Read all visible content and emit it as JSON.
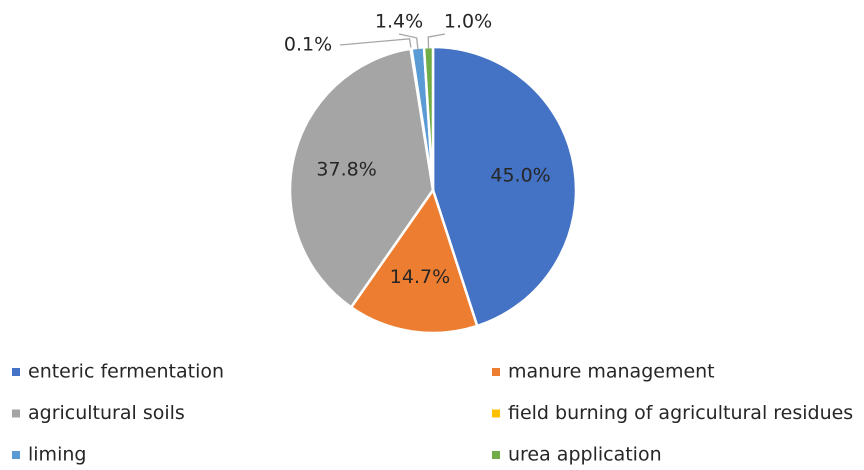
{
  "chart_data": {
    "type": "pie",
    "categories": [
      "enteric fermentation",
      "manure management",
      "agricultural soils",
      "field burning of agricultural residues",
      "liming",
      "urea application"
    ],
    "values": [
      45.0,
      14.7,
      37.8,
      0.1,
      1.4,
      1.0
    ],
    "value_labels": [
      "45.0%",
      "14.7%",
      "37.8%",
      "0.1%",
      "1.4%",
      "1.0%"
    ],
    "colors": [
      "#4472c4",
      "#ed7d31",
      "#a5a5a5",
      "#ffc000",
      "#5b9bd5",
      "#70ad47"
    ],
    "legend": "bottom"
  }
}
